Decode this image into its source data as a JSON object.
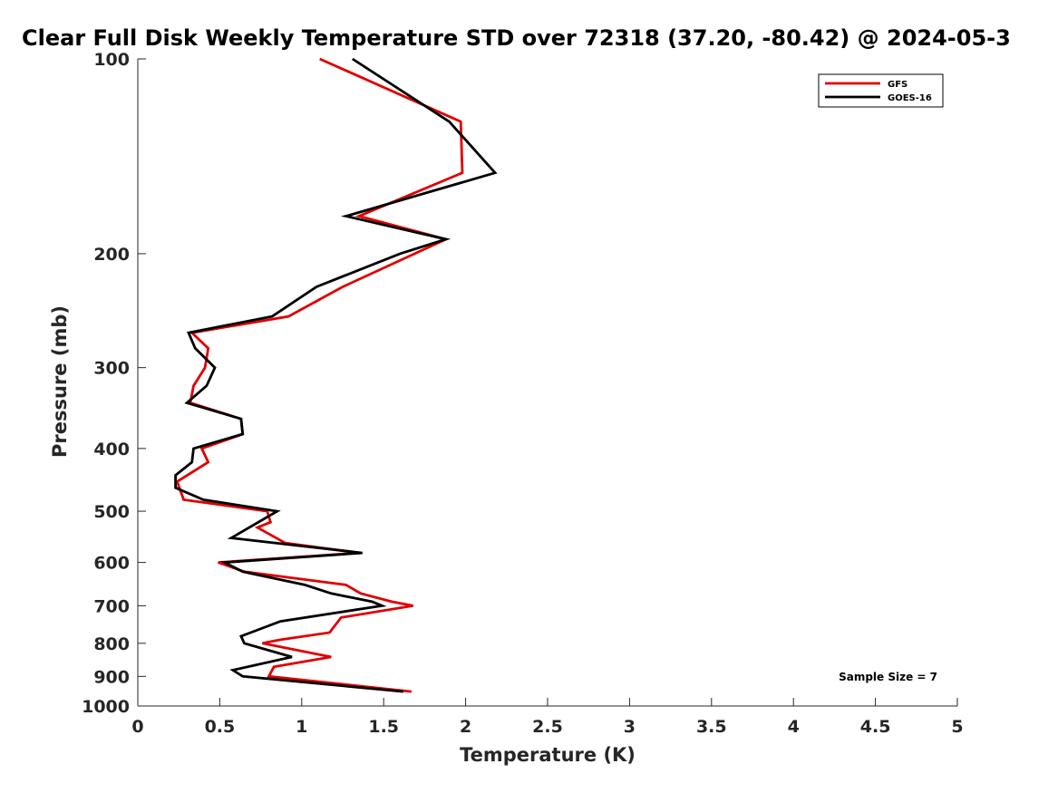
{
  "chart_data": {
    "type": "line",
    "title": "Clear Full Disk Weekly Temperature STD over 72318 (37.20, -80.42) @ 2024-05-3",
    "xlabel": "Temperature (K)",
    "ylabel": "Pressure (mb)",
    "xlim": [
      0,
      5
    ],
    "ylim": [
      100,
      1000
    ],
    "y_scale": "log",
    "y_reversed": true,
    "xticks": [
      "0",
      "0.5",
      "1",
      "1.5",
      "2",
      "2.5",
      "3",
      "3.5",
      "4",
      "4.5",
      "5"
    ],
    "yticks": [
      "100",
      "200",
      "300",
      "400",
      "500",
      "600",
      "700",
      "800",
      "900",
      "1000"
    ],
    "grid": false,
    "legend_position": "top-right",
    "annotation": "Sample Size = 7",
    "series": [
      {
        "name": "GFS",
        "color": "#e00000",
        "points": [
          [
            1.11,
            100
          ],
          [
            1.97,
            125
          ],
          [
            1.98,
            150
          ],
          [
            1.35,
            175
          ],
          [
            1.88,
            190
          ],
          [
            1.25,
            225
          ],
          [
            0.92,
            250
          ],
          [
            0.33,
            265
          ],
          [
            0.43,
            280
          ],
          [
            0.41,
            300
          ],
          [
            0.34,
            320
          ],
          [
            0.32,
            340
          ],
          [
            0.63,
            360
          ],
          [
            0.64,
            380
          ],
          [
            0.39,
            400
          ],
          [
            0.43,
            420
          ],
          [
            0.24,
            450
          ],
          [
            0.28,
            480
          ],
          [
            0.79,
            500
          ],
          [
            0.81,
            520
          ],
          [
            0.73,
            530
          ],
          [
            0.9,
            560
          ],
          [
            1.35,
            580
          ],
          [
            0.49,
            600
          ],
          [
            0.65,
            620
          ],
          [
            1.27,
            650
          ],
          [
            1.36,
            670
          ],
          [
            1.55,
            690
          ],
          [
            1.68,
            700
          ],
          [
            1.24,
            730
          ],
          [
            1.17,
            770
          ],
          [
            0.87,
            790
          ],
          [
            0.76,
            800
          ],
          [
            1.18,
            840
          ],
          [
            0.83,
            870
          ],
          [
            0.8,
            900
          ],
          [
            1.67,
            950
          ]
        ]
      },
      {
        "name": "GOES-16",
        "color": "#000000",
        "points": [
          [
            1.31,
            100
          ],
          [
            1.9,
            125
          ],
          [
            2.18,
            150
          ],
          [
            1.27,
            175
          ],
          [
            1.88,
            190
          ],
          [
            1.6,
            200
          ],
          [
            1.09,
            225
          ],
          [
            0.82,
            250
          ],
          [
            0.31,
            265
          ],
          [
            0.35,
            280
          ],
          [
            0.47,
            300
          ],
          [
            0.42,
            320
          ],
          [
            0.3,
            340
          ],
          [
            0.63,
            360
          ],
          [
            0.64,
            380
          ],
          [
            0.34,
            400
          ],
          [
            0.33,
            420
          ],
          [
            0.23,
            440
          ],
          [
            0.23,
            460
          ],
          [
            0.4,
            480
          ],
          [
            0.85,
            500
          ],
          [
            0.57,
            550
          ],
          [
            1.37,
            580
          ],
          [
            0.53,
            600
          ],
          [
            0.64,
            620
          ],
          [
            1.02,
            650
          ],
          [
            1.18,
            670
          ],
          [
            1.43,
            690
          ],
          [
            1.49,
            700
          ],
          [
            0.87,
            740
          ],
          [
            0.63,
            780
          ],
          [
            0.65,
            800
          ],
          [
            0.94,
            840
          ],
          [
            0.58,
            880
          ],
          [
            0.64,
            900
          ],
          [
            1.62,
            950
          ]
        ]
      }
    ]
  }
}
